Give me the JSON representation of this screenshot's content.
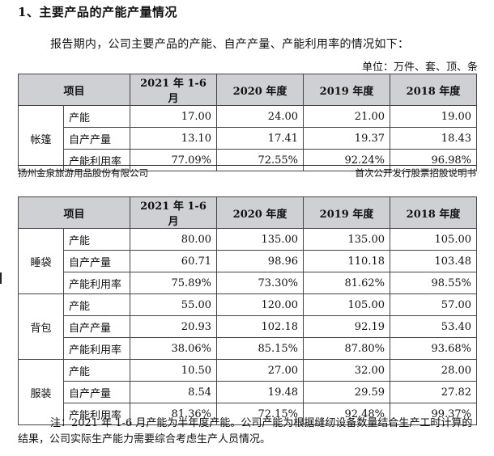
{
  "heading": "1、主要产品的产能产量情况",
  "intro": "报告期内，公司主要产品的产能、自产产量、产能利用率的情况如下：",
  "unit": "单位：万件、套、顶、条",
  "columns": [
    "项目",
    "2021 年 1-6 月",
    "2020 年度",
    "2019 年度",
    "2018 年度"
  ],
  "table1": [
    {
      "category": "帐篷",
      "rows": [
        {
          "item": "产能",
          "values": [
            "17.00",
            "24.00",
            "21.00",
            "19.00"
          ]
        },
        {
          "item": "自产产量",
          "values": [
            "13.10",
            "17.41",
            "19.37",
            "18.43"
          ]
        },
        {
          "item": "产能利用率",
          "values": [
            "77.09%",
            "72.55%",
            "92.24%",
            "96.98%"
          ]
        }
      ]
    }
  ],
  "footer": {
    "left": "扬州金泉旅游用品股份有限公司",
    "right": "首次公开发行股票招股说明书"
  },
  "table2": [
    {
      "category": "睡袋",
      "rows": [
        {
          "item": "产能",
          "values": [
            "80.00",
            "135.00",
            "135.00",
            "105.00"
          ]
        },
        {
          "item": "自产产量",
          "values": [
            "60.71",
            "98.96",
            "110.18",
            "103.48"
          ]
        },
        {
          "item": "产能利用率",
          "values": [
            "75.89%",
            "73.30%",
            "81.62%",
            "98.55%"
          ]
        }
      ]
    },
    {
      "category": "背包",
      "rows": [
        {
          "item": "产能",
          "values": [
            "55.00",
            "120.00",
            "105.00",
            "57.00"
          ]
        },
        {
          "item": "自产产量",
          "values": [
            "20.93",
            "102.18",
            "92.19",
            "53.40"
          ]
        },
        {
          "item": "产能利用率",
          "values": [
            "38.06%",
            "85.15%",
            "87.80%",
            "93.68%"
          ]
        }
      ]
    },
    {
      "category": "服装",
      "rows": [
        {
          "item": "产能",
          "values": [
            "10.50",
            "27.00",
            "32.00",
            "28.00"
          ]
        },
        {
          "item": "自产产量",
          "values": [
            "8.54",
            "19.48",
            "29.59",
            "27.82"
          ]
        },
        {
          "item": "产能利用率",
          "values": [
            "81.36%",
            "72.15%",
            "92.48%",
            "99.37%"
          ]
        }
      ]
    }
  ],
  "note": "注：2021 年 1-6 月产能为半年度产能。公司产能为根据缝纫设备数量结合生产工时计算的结果，公司实际生产能力需要综合考虑生产人员情况。"
}
